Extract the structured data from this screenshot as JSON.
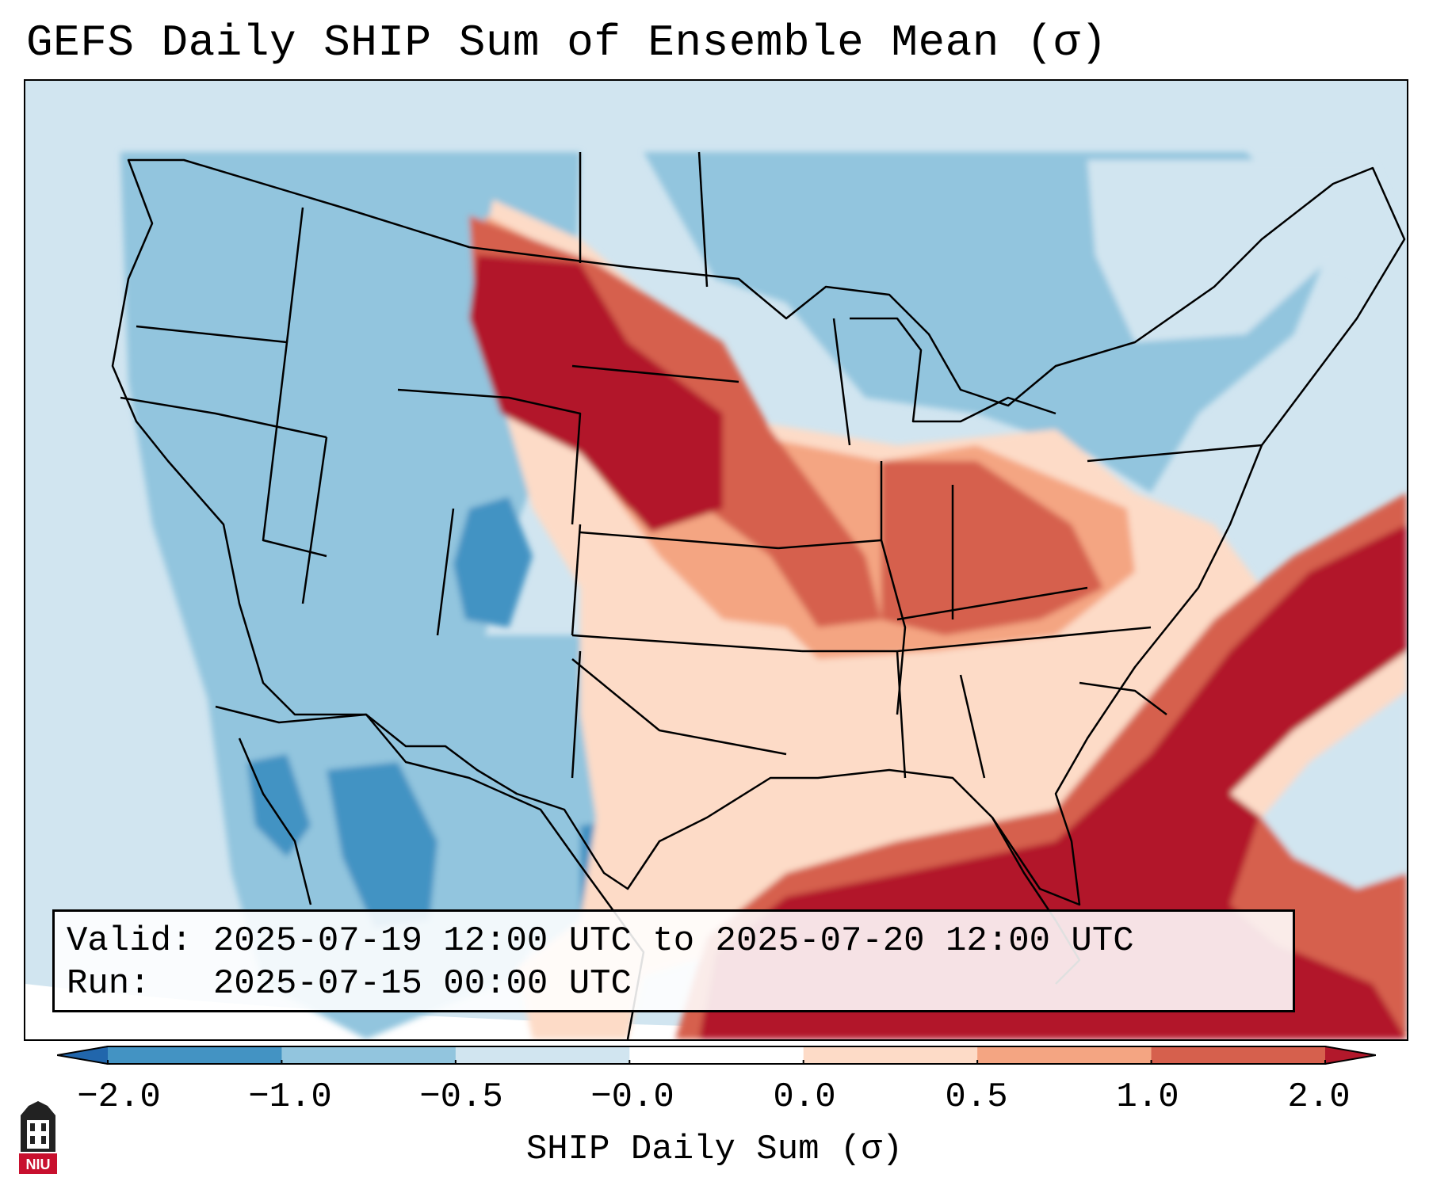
{
  "title": "GEFS Daily SHIP Sum of Ensemble Mean (σ)",
  "info": {
    "valid_label": "Valid:",
    "valid_value": "2025-07-19 12:00 UTC to 2025-07-20 12:00 UTC",
    "run_label": "Run:",
    "run_value": "2025-07-15 00:00 UTC"
  },
  "colorbar": {
    "label": "SHIP Daily Sum (σ)",
    "ticks": [
      "−2.0",
      "−1.0",
      "−0.5",
      "−0.0",
      "0.0",
      "0.5",
      "1.0",
      "2.0"
    ],
    "colors": [
      "#2166ac",
      "#4393c3",
      "#92c5de",
      "#d1e5f0",
      "#ffffff",
      "#fddbc7",
      "#f4a582",
      "#d6604d",
      "#b2182b"
    ],
    "extend": "both"
  },
  "map": {
    "region": "Contiguous United States, northern Mexico, Gulf of Mexico, western Atlantic",
    "colors": {
      "ocean_background": "#d1e5f0",
      "outside_domain": "#ffffff",
      "borders": "#000000"
    }
  },
  "logo": {
    "text": "NIU"
  }
}
